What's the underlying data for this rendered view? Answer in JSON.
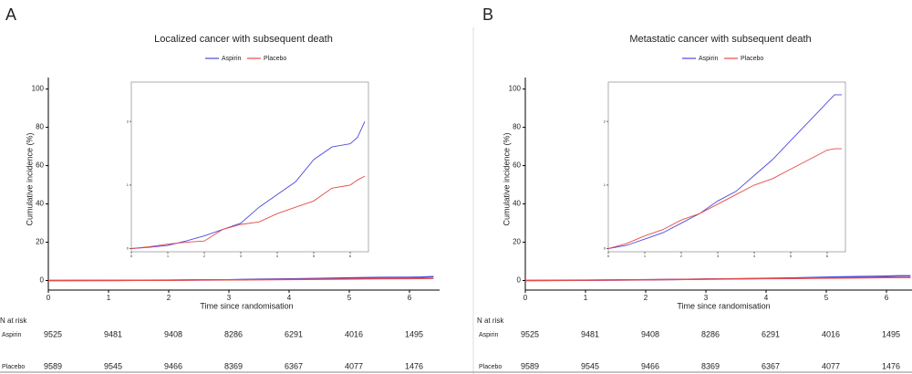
{
  "chart_data": [
    {
      "type": "line",
      "panel_label": "A",
      "title": "Localized cancer with subsequent death",
      "x_label": "Time since randomisation",
      "y_label": "Cumulative incidence (%)",
      "xlim": [
        0,
        6.5
      ],
      "ylim": [
        -5,
        106
      ],
      "xticks": [
        0,
        1,
        2,
        3,
        4,
        5,
        6
      ],
      "yticks": [
        0,
        20,
        40,
        60,
        80,
        100
      ],
      "inset_xlim": [
        0,
        6.5
      ],
      "inset_ylim": [
        -0.05,
        2.62
      ],
      "inset_xticks": [
        0,
        1,
        2,
        3,
        4,
        5,
        6
      ],
      "inset_yticks": [
        0,
        1,
        2
      ],
      "x": [
        0,
        0.5,
        1,
        1.5,
        2,
        2.5,
        3,
        3.5,
        4,
        4.5,
        5,
        5.5,
        6,
        6.2,
        6.4
      ],
      "series": [
        {
          "name": "Aspirin",
          "color": "#4a4ae0",
          "values": [
            0,
            0.02,
            0.05,
            0.12,
            0.2,
            0.3,
            0.4,
            0.65,
            0.85,
            1.05,
            1.4,
            1.6,
            1.65,
            1.75,
            2.0
          ]
        },
        {
          "name": "Placebo",
          "color": "#e84a4a",
          "values": [
            0,
            0.03,
            0.07,
            0.1,
            0.12,
            0.3,
            0.38,
            0.42,
            0.55,
            0.65,
            0.75,
            0.95,
            1.0,
            1.08,
            1.14
          ]
        }
      ],
      "risk_table": {
        "title": "N at risk",
        "times": [
          0,
          1,
          2,
          3,
          4,
          5,
          6
        ],
        "rows": [
          {
            "name": "Aspirin",
            "counts": [
              9525,
              9481,
              9408,
              8286,
              6291,
              4016,
              1495
            ]
          },
          {
            "name": "Placebo",
            "counts": [
              9589,
              9545,
              9466,
              8369,
              6367,
              4077,
              1476
            ]
          }
        ]
      }
    },
    {
      "type": "line",
      "panel_label": "B",
      "title": "Metastatic cancer with subsequent death",
      "x_label": "Time since randomisation",
      "y_label": "Cumulative incidence (%)",
      "xlim": [
        0,
        6.5
      ],
      "ylim": [
        -5,
        106
      ],
      "xticks": [
        0,
        1,
        2,
        3,
        4,
        5,
        6
      ],
      "yticks": [
        0,
        20,
        40,
        60,
        80,
        100
      ],
      "inset_xlim": [
        0,
        6.5
      ],
      "inset_ylim": [
        -0.05,
        2.62
      ],
      "inset_xticks": [
        0,
        1,
        2,
        3,
        4,
        5,
        6
      ],
      "inset_yticks": [
        0,
        1,
        2
      ],
      "x": [
        0,
        0.5,
        1,
        1.5,
        2,
        2.5,
        3,
        3.5,
        4,
        4.5,
        5,
        5.5,
        6,
        6.2,
        6.4
      ],
      "series": [
        {
          "name": "Aspirin",
          "color": "#4a4ae0",
          "values": [
            0,
            0.05,
            0.15,
            0.25,
            0.4,
            0.55,
            0.75,
            0.9,
            1.15,
            1.4,
            1.7,
            2.0,
            2.3,
            2.42,
            2.42
          ]
        },
        {
          "name": "Placebo",
          "color": "#e84a4a",
          "values": [
            0,
            0.08,
            0.2,
            0.3,
            0.45,
            0.55,
            0.7,
            0.85,
            1.0,
            1.1,
            1.25,
            1.4,
            1.55,
            1.57,
            1.57
          ]
        }
      ],
      "risk_table": {
        "title": "N at risk",
        "times": [
          0,
          1,
          2,
          3,
          4,
          5,
          6
        ],
        "rows": [
          {
            "name": "Aspirin",
            "counts": [
              9525,
              9481,
              9408,
              8286,
              6291,
              4016,
              1495
            ]
          },
          {
            "name": "Placebo",
            "counts": [
              9589,
              9545,
              9466,
              8369,
              6367,
              4077,
              1476
            ]
          }
        ]
      }
    }
  ]
}
